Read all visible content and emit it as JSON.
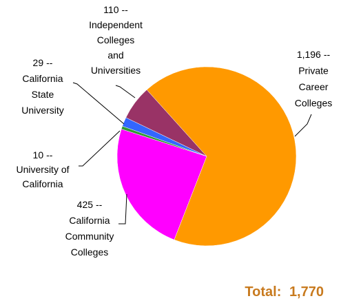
{
  "chart_data": {
    "type": "pie",
    "categories": [
      [
        "Private",
        "Career",
        "Colleges"
      ],
      [
        "California",
        "Community",
        "Colleges"
      ],
      [
        "University of",
        "California"
      ],
      [
        "California",
        "State",
        "University"
      ],
      [
        "Independent",
        "Colleges",
        "and",
        "Universities"
      ]
    ],
    "values": [
      1196,
      425,
      10,
      29,
      110
    ],
    "value_labels": [
      "1,196",
      "425",
      "10",
      "29",
      "110"
    ],
    "label_separator": "--",
    "colors": [
      "#FF9900",
      "#FF00FF",
      "#339933",
      "#3366FF",
      "#993366"
    ],
    "total": {
      "label": "Total:",
      "value": 1770,
      "value_label": "1,770"
    }
  }
}
